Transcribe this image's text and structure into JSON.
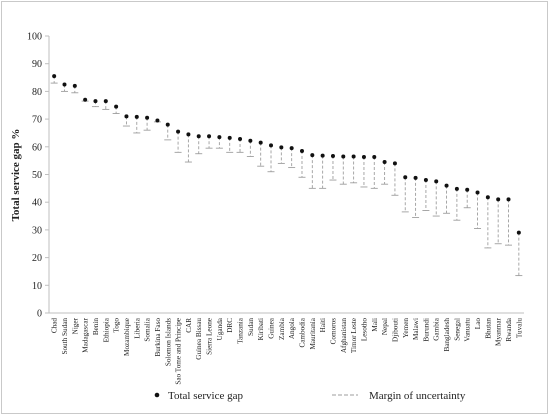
{
  "chart_data": {
    "type": "scatter",
    "ylabel": "Total service gap %",
    "xlabel": "",
    "ylim": [
      0,
      100
    ],
    "yticks": [
      0,
      10,
      20,
      30,
      40,
      50,
      60,
      70,
      80,
      90,
      100
    ],
    "grid": false,
    "legend_position": "bottom",
    "categories": [
      "Chad",
      "South Sudan",
      "Niger",
      "Madagascar",
      "Benin",
      "Ethiopia",
      "Togo",
      "Mozambique",
      "Liberia",
      "Somalia",
      "Burkina Faso",
      "Solomon Islands",
      "Sao Tome and Principe",
      "CAR",
      "Guinea Bissau",
      "Sierra Leone",
      "Uganda",
      "DRC",
      "Tanzania",
      "Sudan",
      "Kiribati",
      "Guinea",
      "Zambia",
      "Angola",
      "Cambodia",
      "Mauritania",
      "Haiti",
      "Comoros",
      "Afghanistan",
      "Timor Leste",
      "Lesotho",
      "Mali",
      "Nepal",
      "Djibouti",
      "Yemen",
      "Malawi",
      "Burundi",
      "Gambia",
      "Bangladesh",
      "Senegal",
      "Vanuatu",
      "Lao",
      "Bhutan",
      "Myanmar",
      "Rwanda",
      "Tuvalu"
    ],
    "series": [
      {
        "name": "Total service gap",
        "values": [
          85.5,
          82.5,
          82.0,
          77.0,
          76.5,
          76.5,
          74.5,
          71.0,
          70.8,
          70.5,
          69.5,
          68.0,
          65.5,
          64.5,
          63.8,
          63.8,
          63.5,
          63.2,
          62.8,
          62.2,
          61.5,
          60.5,
          59.8,
          59.5,
          58.5,
          57.0,
          56.8,
          56.7,
          56.5,
          56.5,
          56.3,
          56.3,
          54.5,
          54.0,
          49.0,
          48.8,
          48.0,
          47.5,
          46.0,
          44.8,
          44.5,
          43.5,
          41.8,
          41.0,
          41.0,
          29.0
        ]
      },
      {
        "name": "Margin of uncertainty",
        "lower": [
          83.0,
          80.0,
          79.5,
          76.5,
          74.5,
          73.5,
          72.0,
          67.5,
          65.0,
          66.0,
          69.0,
          62.5,
          58.0,
          54.5,
          57.5,
          59.5,
          59.5,
          58.0,
          58.0,
          56.5,
          53.0,
          51.0,
          54.0,
          52.5,
          49.0,
          45.0,
          45.0,
          48.0,
          46.5,
          47.0,
          45.5,
          45.0,
          46.5,
          42.5,
          36.5,
          34.5,
          37.0,
          35.0,
          36.0,
          33.5,
          38.0,
          30.5,
          23.5,
          25.0,
          24.5,
          13.5
        ]
      }
    ]
  },
  "legend": {
    "dot_label": "Total service gap",
    "dash_label": "Margin of uncertainty"
  },
  "colors": {
    "dot": "#111111",
    "dash": "#9e9e9e",
    "axis": "#bfbfbf",
    "text": "#222222"
  }
}
